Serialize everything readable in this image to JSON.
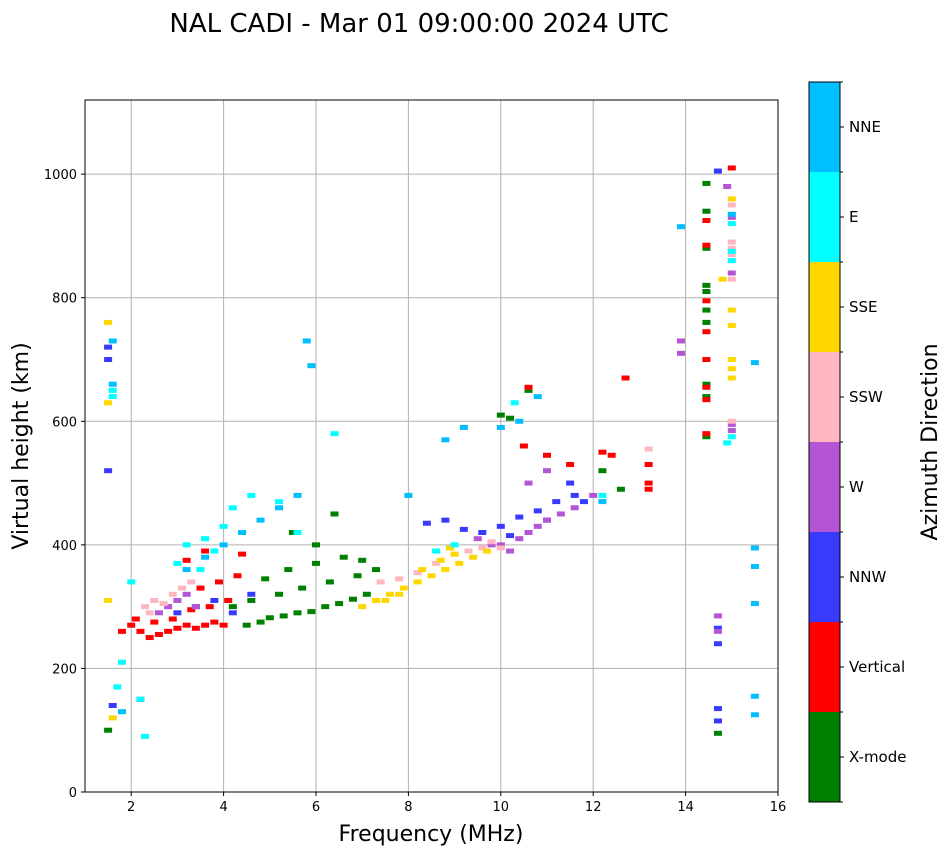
{
  "chart_data": {
    "type": "scatter",
    "title": "NAL CADI - Mar 01 09:00:00 2024 UTC",
    "xlabel": "Frequency (MHz)",
    "ylabel": "Virtual height (km)",
    "xlim": [
      1,
      16
    ],
    "ylim": [
      0,
      1120
    ],
    "xticks": [
      2,
      4,
      6,
      8,
      10,
      12,
      14,
      16
    ],
    "yticks": [
      0,
      200,
      400,
      600,
      800,
      1000
    ],
    "grid": true,
    "colorbar": {
      "label": "Azimuth Direction",
      "position": "right",
      "categories": [
        {
          "name": "X-mode",
          "color": "#008000"
        },
        {
          "name": "Vertical",
          "color": "#ff0000"
        },
        {
          "name": "NNW",
          "color": "#3a3aff"
        },
        {
          "name": "W",
          "color": "#b455d6"
        },
        {
          "name": "SSW",
          "color": "#ffb6c1"
        },
        {
          "name": "SSE",
          "color": "#ffd700"
        },
        {
          "name": "E",
          "color": "#00ffff"
        },
        {
          "name": "NNE",
          "color": "#00bfff"
        }
      ]
    },
    "series": [
      {
        "name": "X-mode",
        "points": [
          [
            4.5,
            270
          ],
          [
            4.8,
            275
          ],
          [
            5.0,
            282
          ],
          [
            5.3,
            285
          ],
          [
            5.6,
            290
          ],
          [
            5.9,
            292
          ],
          [
            6.2,
            300
          ],
          [
            6.5,
            305
          ],
          [
            6.8,
            312
          ],
          [
            7.1,
            320
          ],
          [
            4.2,
            300
          ],
          [
            4.6,
            310
          ],
          [
            5.2,
            320
          ],
          [
            5.7,
            330
          ],
          [
            6.3,
            340
          ],
          [
            6.9,
            350
          ],
          [
            7.3,
            360
          ],
          [
            5.4,
            360
          ],
          [
            6.0,
            370
          ],
          [
            6.6,
            380
          ],
          [
            5.5,
            420
          ],
          [
            6.4,
            450
          ],
          [
            6.0,
            400
          ],
          [
            7.0,
            375
          ],
          [
            4.9,
            345
          ],
          [
            10.0,
            610
          ],
          [
            10.2,
            605
          ],
          [
            10.6,
            650
          ],
          [
            12.2,
            520
          ],
          [
            12.6,
            490
          ],
          [
            14.45,
            985
          ],
          [
            14.45,
            940
          ],
          [
            14.45,
            880
          ],
          [
            14.45,
            820
          ],
          [
            14.45,
            810
          ],
          [
            14.45,
            780
          ],
          [
            14.45,
            760
          ],
          [
            14.45,
            660
          ],
          [
            14.45,
            640
          ],
          [
            14.45,
            575
          ],
          [
            14.7,
            95
          ],
          [
            1.5,
            100
          ]
        ]
      },
      {
        "name": "Vertical",
        "points": [
          [
            2.0,
            270
          ],
          [
            2.2,
            260
          ],
          [
            2.4,
            250
          ],
          [
            2.6,
            255
          ],
          [
            2.8,
            260
          ],
          [
            3.0,
            265
          ],
          [
            3.2,
            270
          ],
          [
            3.4,
            265
          ],
          [
            3.6,
            270
          ],
          [
            3.8,
            275
          ],
          [
            4.0,
            270
          ],
          [
            2.1,
            280
          ],
          [
            2.5,
            275
          ],
          [
            2.9,
            280
          ],
          [
            3.3,
            295
          ],
          [
            3.7,
            300
          ],
          [
            4.1,
            310
          ],
          [
            3.5,
            330
          ],
          [
            3.9,
            340
          ],
          [
            4.3,
            350
          ],
          [
            3.2,
            375
          ],
          [
            3.6,
            390
          ],
          [
            4.4,
            385
          ],
          [
            10.5,
            560
          ],
          [
            11.0,
            545
          ],
          [
            11.5,
            530
          ],
          [
            12.2,
            550
          ],
          [
            12.4,
            545
          ],
          [
            13.2,
            530
          ],
          [
            13.2,
            500
          ],
          [
            13.2,
            490
          ],
          [
            12.7,
            670
          ],
          [
            10.6,
            655
          ],
          [
            14.45,
            925
          ],
          [
            14.45,
            885
          ],
          [
            14.45,
            795
          ],
          [
            14.45,
            745
          ],
          [
            14.45,
            700
          ],
          [
            14.45,
            655
          ],
          [
            14.45,
            635
          ],
          [
            14.45,
            580
          ],
          [
            15.0,
            1010
          ],
          [
            1.8,
            260
          ]
        ]
      },
      {
        "name": "NNW",
        "points": [
          [
            3.0,
            290
          ],
          [
            3.4,
            300
          ],
          [
            3.8,
            310
          ],
          [
            4.2,
            290
          ],
          [
            4.6,
            320
          ],
          [
            10.0,
            430
          ],
          [
            10.4,
            445
          ],
          [
            10.8,
            455
          ],
          [
            11.2,
            470
          ],
          [
            11.6,
            480
          ],
          [
            11.8,
            470
          ],
          [
            11.5,
            500
          ],
          [
            11.0,
            440
          ],
          [
            10.2,
            415
          ],
          [
            9.6,
            420
          ],
          [
            9.2,
            425
          ],
          [
            8.8,
            440
          ],
          [
            8.4,
            435
          ],
          [
            1.5,
            520
          ],
          [
            1.5,
            720
          ],
          [
            1.5,
            700
          ],
          [
            14.7,
            1005
          ],
          [
            14.7,
            265
          ],
          [
            14.7,
            240
          ],
          [
            14.7,
            135
          ],
          [
            14.7,
            115
          ],
          [
            2.2,
            150
          ],
          [
            1.6,
            140
          ]
        ]
      },
      {
        "name": "W",
        "points": [
          [
            2.6,
            290
          ],
          [
            2.8,
            300
          ],
          [
            3.0,
            310
          ],
          [
            3.2,
            320
          ],
          [
            3.4,
            300
          ],
          [
            10.0,
            400
          ],
          [
            10.2,
            390
          ],
          [
            10.4,
            410
          ],
          [
            10.6,
            420
          ],
          [
            10.8,
            430
          ],
          [
            11.0,
            440
          ],
          [
            11.3,
            450
          ],
          [
            11.6,
            460
          ],
          [
            12.0,
            480
          ],
          [
            10.6,
            500
          ],
          [
            11.0,
            520
          ],
          [
            13.9,
            730
          ],
          [
            13.9,
            710
          ],
          [
            14.9,
            980
          ],
          [
            15.0,
            930
          ],
          [
            15.0,
            840
          ],
          [
            15.0,
            595
          ],
          [
            15.0,
            585
          ],
          [
            9.8,
            400
          ],
          [
            9.5,
            410
          ],
          [
            14.7,
            285
          ],
          [
            14.7,
            260
          ]
        ]
      },
      {
        "name": "SSW",
        "points": [
          [
            2.3,
            300
          ],
          [
            2.5,
            310
          ],
          [
            2.7,
            305
          ],
          [
            2.9,
            320
          ],
          [
            3.1,
            330
          ],
          [
            3.3,
            340
          ],
          [
            9.0,
            385
          ],
          [
            9.3,
            390
          ],
          [
            9.6,
            395
          ],
          [
            9.8,
            405
          ],
          [
            10.0,
            395
          ],
          [
            8.6,
            370
          ],
          [
            8.2,
            355
          ],
          [
            7.8,
            345
          ],
          [
            7.4,
            340
          ],
          [
            15.0,
            950
          ],
          [
            15.0,
            890
          ],
          [
            15.0,
            880
          ],
          [
            15.0,
            870
          ],
          [
            15.0,
            830
          ],
          [
            15.0,
            600
          ],
          [
            13.2,
            555
          ],
          [
            2.4,
            290
          ]
        ]
      },
      {
        "name": "SSE",
        "points": [
          [
            7.0,
            300
          ],
          [
            7.3,
            310
          ],
          [
            7.6,
            320
          ],
          [
            7.9,
            330
          ],
          [
            8.2,
            340
          ],
          [
            8.5,
            350
          ],
          [
            8.8,
            360
          ],
          [
            9.1,
            370
          ],
          [
            9.4,
            380
          ],
          [
            9.7,
            390
          ],
          [
            8.3,
            360
          ],
          [
            8.7,
            375
          ],
          [
            9.0,
            385
          ],
          [
            8.9,
            395
          ],
          [
            7.8,
            320
          ],
          [
            7.5,
            310
          ],
          [
            1.5,
            310
          ],
          [
            1.5,
            760
          ],
          [
            1.5,
            630
          ],
          [
            1.6,
            120
          ],
          [
            15.0,
            780
          ],
          [
            15.0,
            755
          ],
          [
            15.0,
            700
          ],
          [
            15.0,
            685
          ],
          [
            15.0,
            670
          ],
          [
            14.8,
            830
          ],
          [
            15.0,
            960
          ]
        ]
      },
      {
        "name": "E",
        "points": [
          [
            1.6,
            650
          ],
          [
            1.6,
            640
          ],
          [
            1.7,
            170
          ],
          [
            1.8,
            210
          ],
          [
            2.0,
            340
          ],
          [
            2.2,
            150
          ],
          [
            2.3,
            90
          ],
          [
            3.0,
            370
          ],
          [
            3.2,
            400
          ],
          [
            3.6,
            410
          ],
          [
            4.0,
            430
          ],
          [
            4.2,
            460
          ],
          [
            4.6,
            480
          ],
          [
            5.2,
            470
          ],
          [
            5.6,
            420
          ],
          [
            6.4,
            580
          ],
          [
            8.6,
            390
          ],
          [
            9.0,
            400
          ],
          [
            10.3,
            630
          ],
          [
            15.0,
            920
          ],
          [
            15.0,
            875
          ],
          [
            15.0,
            860
          ],
          [
            15.0,
            575
          ],
          [
            14.9,
            565
          ],
          [
            12.2,
            480
          ],
          [
            3.5,
            360
          ],
          [
            3.8,
            390
          ],
          [
            4.4,
            420
          ]
        ]
      },
      {
        "name": "NNE",
        "points": [
          [
            1.6,
            660
          ],
          [
            1.6,
            730
          ],
          [
            3.2,
            360
          ],
          [
            3.6,
            380
          ],
          [
            4.0,
            400
          ],
          [
            4.4,
            420
          ],
          [
            4.8,
            440
          ],
          [
            5.2,
            460
          ],
          [
            5.6,
            480
          ],
          [
            8.0,
            480
          ],
          [
            8.8,
            570
          ],
          [
            9.2,
            590
          ],
          [
            10.0,
            590
          ],
          [
            10.4,
            600
          ],
          [
            10.8,
            640
          ],
          [
            13.9,
            915
          ],
          [
            15.0,
            935
          ],
          [
            15.5,
            695
          ],
          [
            15.5,
            395
          ],
          [
            15.5,
            365
          ],
          [
            15.5,
            305
          ],
          [
            15.5,
            155
          ],
          [
            15.5,
            125
          ],
          [
            5.8,
            730
          ],
          [
            5.9,
            690
          ],
          [
            12.2,
            470
          ],
          [
            1.8,
            130
          ]
        ]
      }
    ]
  }
}
